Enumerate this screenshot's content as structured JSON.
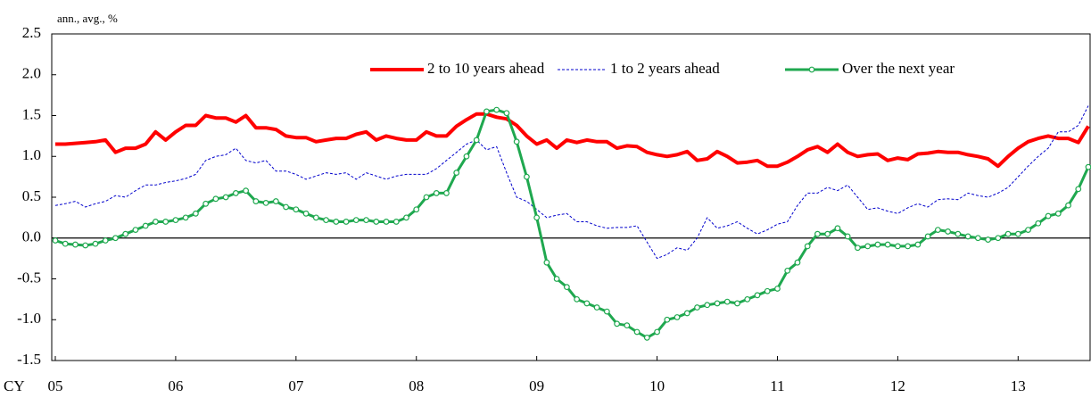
{
  "chart_data": {
    "type": "line",
    "y_axis_label": "ann., avg., %",
    "x_axis_label": "CY",
    "categories": [
      "05",
      null,
      null,
      null,
      null,
      null,
      null,
      null,
      null,
      null,
      null,
      null,
      "06",
      null,
      null,
      null,
      null,
      null,
      null,
      null,
      null,
      null,
      null,
      null,
      "07",
      null,
      null,
      null,
      null,
      null,
      null,
      null,
      null,
      null,
      null,
      null,
      "08",
      null,
      null,
      null,
      null,
      null,
      null,
      null,
      null,
      null,
      null,
      null,
      "09",
      null,
      null,
      null,
      null,
      null,
      null,
      null,
      null,
      null,
      null,
      null,
      "10",
      null,
      null,
      null,
      null,
      null,
      null,
      null,
      null,
      null,
      null,
      null,
      "11",
      null,
      null,
      null,
      null,
      null,
      null,
      null,
      null,
      null,
      null,
      null,
      "12",
      null,
      null,
      null,
      null,
      null,
      null,
      null,
      null,
      null,
      null,
      null,
      "13",
      null,
      null,
      null,
      null,
      null,
      null,
      null
    ],
    "series": [
      {
        "name": "2 to 10 years ahead",
        "color": "#ff0000",
        "width": 4,
        "dash": false,
        "marker": false,
        "values": [
          1.15,
          1.15,
          1.16,
          1.17,
          1.18,
          1.2,
          1.05,
          1.1,
          1.1,
          1.15,
          1.3,
          1.2,
          1.3,
          1.38,
          1.38,
          1.5,
          1.47,
          1.47,
          1.42,
          1.5,
          1.35,
          1.35,
          1.33,
          1.25,
          1.23,
          1.23,
          1.18,
          1.2,
          1.22,
          1.22,
          1.27,
          1.3,
          1.2,
          1.25,
          1.22,
          1.2,
          1.2,
          1.3,
          1.25,
          1.25,
          1.37,
          1.45,
          1.52,
          1.52,
          1.48,
          1.46,
          1.38,
          1.25,
          1.15,
          1.2,
          1.1,
          1.2,
          1.17,
          1.2,
          1.18,
          1.18,
          1.1,
          1.13,
          1.12,
          1.05,
          1.02,
          1.0,
          1.02,
          1.06,
          0.95,
          0.97,
          1.06,
          1.0,
          0.92,
          0.93,
          0.95,
          0.88,
          0.88,
          0.93,
          1.0,
          1.08,
          1.12,
          1.05,
          1.15,
          1.05,
          1.0,
          1.02,
          1.03,
          0.95,
          0.98,
          0.96,
          1.03,
          1.04,
          1.06,
          1.05,
          1.05,
          1.02,
          1.0,
          0.97,
          0.88,
          1.0,
          1.1,
          1.18,
          1.22,
          1.25,
          1.22,
          1.22,
          1.17,
          1.37
        ]
      },
      {
        "name": "1 to 2 years ahead",
        "color": "#0000cc",
        "width": 1,
        "dash": true,
        "marker": false,
        "values": [
          0.4,
          0.42,
          0.45,
          0.38,
          0.42,
          0.45,
          0.52,
          0.5,
          0.58,
          0.65,
          0.65,
          0.68,
          0.7,
          0.73,
          0.78,
          0.95,
          1.0,
          1.02,
          1.1,
          0.95,
          0.92,
          0.95,
          0.82,
          0.82,
          0.78,
          0.72,
          0.76,
          0.8,
          0.78,
          0.8,
          0.72,
          0.8,
          0.76,
          0.72,
          0.76,
          0.78,
          0.78,
          0.78,
          0.85,
          0.95,
          1.05,
          1.15,
          1.2,
          1.08,
          1.12,
          0.8,
          0.5,
          0.45,
          0.35,
          0.25,
          0.28,
          0.3,
          0.2,
          0.2,
          0.15,
          0.12,
          0.13,
          0.13,
          0.15,
          -0.05,
          -0.25,
          -0.2,
          -0.12,
          -0.15,
          0.0,
          0.25,
          0.12,
          0.15,
          0.2,
          0.12,
          0.05,
          0.1,
          0.17,
          0.2,
          0.4,
          0.55,
          0.55,
          0.62,
          0.58,
          0.65,
          0.5,
          0.35,
          0.37,
          0.33,
          0.3,
          0.37,
          0.42,
          0.38,
          0.47,
          0.48,
          0.47,
          0.55,
          0.52,
          0.5,
          0.55,
          0.62,
          0.75,
          0.88,
          1.0,
          1.1,
          1.3,
          1.3,
          1.38,
          1.62
        ]
      },
      {
        "name": "Over the next year",
        "color": "#1fa84f",
        "width": 3,
        "dash": false,
        "marker": true,
        "values": [
          -0.03,
          -0.07,
          -0.08,
          -0.09,
          -0.07,
          -0.03,
          0.0,
          0.05,
          0.1,
          0.15,
          0.2,
          0.2,
          0.22,
          0.25,
          0.3,
          0.42,
          0.48,
          0.5,
          0.55,
          0.58,
          0.45,
          0.43,
          0.45,
          0.38,
          0.35,
          0.3,
          0.25,
          0.22,
          0.2,
          0.2,
          0.22,
          0.22,
          0.2,
          0.2,
          0.2,
          0.25,
          0.35,
          0.5,
          0.55,
          0.55,
          0.8,
          1.0,
          1.2,
          1.55,
          1.57,
          1.53,
          1.18,
          0.75,
          0.25,
          -0.3,
          -0.5,
          -0.6,
          -0.75,
          -0.8,
          -0.85,
          -0.9,
          -1.05,
          -1.07,
          -1.15,
          -1.22,
          -1.15,
          -1.0,
          -0.97,
          -0.92,
          -0.85,
          -0.82,
          -0.8,
          -0.78,
          -0.8,
          -0.75,
          -0.7,
          -0.65,
          -0.62,
          -0.4,
          -0.3,
          -0.1,
          0.05,
          0.05,
          0.12,
          0.02,
          -0.12,
          -0.1,
          -0.08,
          -0.08,
          -0.1,
          -0.1,
          -0.08,
          0.02,
          0.1,
          0.08,
          0.05,
          0.02,
          0.0,
          -0.02,
          0.0,
          0.05,
          0.05,
          0.1,
          0.18,
          0.27,
          0.3,
          0.4,
          0.6,
          0.87
        ]
      }
    ],
    "ylim": [
      -1.5,
      2.5
    ],
    "yticks": [
      {
        "value": -1.5,
        "label": "-1.5"
      },
      {
        "value": -1.0,
        "label": "-1.0"
      },
      {
        "value": -0.5,
        "label": "-0.5"
      },
      {
        "value": 0,
        "label": "0.0"
      },
      {
        "value": 0.5,
        "label": "0.5"
      },
      {
        "value": 1.0,
        "label": "1.0"
      },
      {
        "value": 1.5,
        "label": "1.5"
      },
      {
        "value": 2.0,
        "label": "2.0"
      },
      {
        "value": 2.5,
        "label": "2.5"
      }
    ],
    "zero_line": true,
    "grid": false,
    "legend": "top-right"
  }
}
